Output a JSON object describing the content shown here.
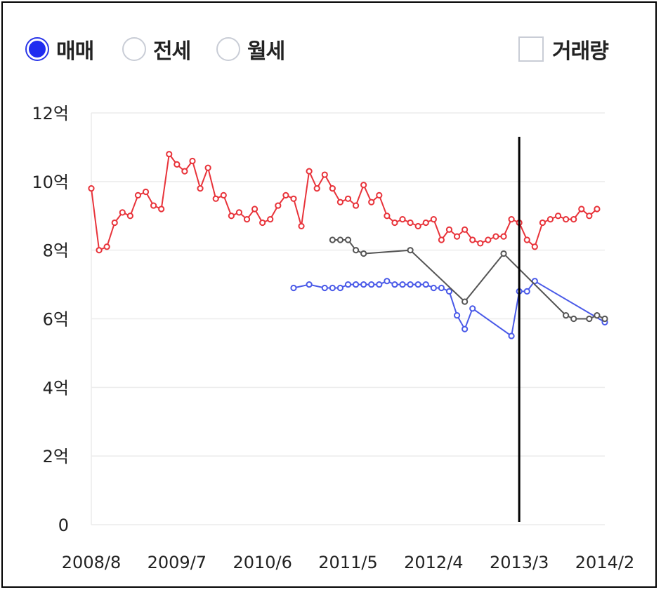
{
  "controls": {
    "radios": [
      {
        "label": "매매",
        "selected": true
      },
      {
        "label": "전세",
        "selected": false
      },
      {
        "label": "월세",
        "selected": false
      }
    ],
    "volume_label": "거래량",
    "volume_checked": false,
    "accent_color": "#1f2cf0"
  },
  "chart_data": {
    "type": "line",
    "ylim": [
      0,
      12
    ],
    "y_ticks": [
      {
        "value": 0,
        "label": "0"
      },
      {
        "value": 2,
        "label": "2억"
      },
      {
        "value": 4,
        "label": "4억"
      },
      {
        "value": 6,
        "label": "6억"
      },
      {
        "value": 8,
        "label": "8억"
      },
      {
        "value": 10,
        "label": "10억"
      },
      {
        "value": 12,
        "label": "12억"
      }
    ],
    "x_ticks": [
      "2008/8",
      "2009/7",
      "2010/6",
      "2011/5",
      "2012/4",
      "2013/3",
      "2014/2"
    ],
    "x_range": [
      "2008/8",
      "2014/2"
    ],
    "grid": true,
    "marker_line_date": "2013/3",
    "series": [
      {
        "color": "#e8333a",
        "points": [
          [
            "2008/8",
            9.8
          ],
          [
            "2008/9",
            8.0
          ],
          [
            "2008/10",
            8.1
          ],
          [
            "2008/11",
            8.8
          ],
          [
            "2008/12",
            9.1
          ],
          [
            "2009/1",
            9.0
          ],
          [
            "2009/2",
            9.6
          ],
          [
            "2009/3",
            9.7
          ],
          [
            "2009/4",
            9.3
          ],
          [
            "2009/5",
            9.2
          ],
          [
            "2009/6",
            10.8
          ],
          [
            "2009/7",
            10.5
          ],
          [
            "2009/8",
            10.3
          ],
          [
            "2009/9",
            10.6
          ],
          [
            "2009/10",
            9.8
          ],
          [
            "2009/11",
            10.4
          ],
          [
            "2009/12",
            9.5
          ],
          [
            "2010/1",
            9.6
          ],
          [
            "2010/2",
            9.0
          ],
          [
            "2010/3",
            9.1
          ],
          [
            "2010/4",
            8.9
          ],
          [
            "2010/5",
            9.2
          ],
          [
            "2010/6",
            8.8
          ],
          [
            "2010/7",
            8.9
          ],
          [
            "2010/8",
            9.3
          ],
          [
            "2010/9",
            9.6
          ],
          [
            "2010/10",
            9.5
          ],
          [
            "2010/11",
            8.7
          ],
          [
            "2010/12",
            10.3
          ],
          [
            "2011/1",
            9.8
          ],
          [
            "2011/2",
            10.2
          ],
          [
            "2011/3",
            9.8
          ],
          [
            "2011/4",
            9.4
          ],
          [
            "2011/5",
            9.5
          ],
          [
            "2011/6",
            9.3
          ],
          [
            "2011/7",
            9.9
          ],
          [
            "2011/8",
            9.4
          ],
          [
            "2011/9",
            9.6
          ],
          [
            "2011/10",
            9.0
          ],
          [
            "2011/11",
            8.8
          ],
          [
            "2011/12",
            8.9
          ],
          [
            "2012/1",
            8.8
          ],
          [
            "2012/2",
            8.7
          ],
          [
            "2012/3",
            8.8
          ],
          [
            "2012/4",
            8.9
          ],
          [
            "2012/5",
            8.3
          ],
          [
            "2012/6",
            8.6
          ],
          [
            "2012/7",
            8.4
          ],
          [
            "2012/8",
            8.6
          ],
          [
            "2012/9",
            8.3
          ],
          [
            "2012/10",
            8.2
          ],
          [
            "2012/11",
            8.3
          ],
          [
            "2012/12",
            8.4
          ],
          [
            "2013/1",
            8.4
          ],
          [
            "2013/2",
            8.9
          ],
          [
            "2013/3",
            8.8
          ],
          [
            "2013/4",
            8.3
          ],
          [
            "2013/5",
            8.1
          ],
          [
            "2013/6",
            8.8
          ],
          [
            "2013/7",
            8.9
          ],
          [
            "2013/8",
            9.0
          ],
          [
            "2013/9",
            8.9
          ],
          [
            "2013/10",
            8.9
          ],
          [
            "2013/11",
            9.2
          ],
          [
            "2013/12",
            9.0
          ],
          [
            "2014/1",
            9.2
          ]
        ]
      },
      {
        "color": "#4a5ae8",
        "points": [
          [
            "2010/10",
            6.9
          ],
          [
            "2010/12",
            7.0
          ],
          [
            "2011/2",
            6.9
          ],
          [
            "2011/3",
            6.9
          ],
          [
            "2011/4",
            6.9
          ],
          [
            "2011/5",
            7.0
          ],
          [
            "2011/6",
            7.0
          ],
          [
            "2011/7",
            7.0
          ],
          [
            "2011/8",
            7.0
          ],
          [
            "2011/9",
            7.0
          ],
          [
            "2011/10",
            7.1
          ],
          [
            "2011/11",
            7.0
          ],
          [
            "2011/12",
            7.0
          ],
          [
            "2012/1",
            7.0
          ],
          [
            "2012/2",
            7.0
          ],
          [
            "2012/3",
            7.0
          ],
          [
            "2012/4",
            6.9
          ],
          [
            "2012/5",
            6.9
          ],
          [
            "2012/6",
            6.8
          ],
          [
            "2012/7",
            6.1
          ],
          [
            "2012/8",
            5.7
          ],
          [
            "2012/9",
            6.3
          ],
          [
            "2013/2",
            5.5
          ],
          [
            "2013/3",
            6.8
          ],
          [
            "2013/4",
            6.8
          ],
          [
            "2013/5",
            7.1
          ],
          [
            "2014/2",
            5.9
          ]
        ]
      },
      {
        "color": "#555555",
        "points": [
          [
            "2011/3",
            8.3
          ],
          [
            "2011/4",
            8.3
          ],
          [
            "2011/5",
            8.3
          ],
          [
            "2011/6",
            8.0
          ],
          [
            "2011/7",
            7.9
          ],
          [
            "2012/1",
            8.0
          ],
          [
            "2012/8",
            6.5
          ],
          [
            "2013/1",
            7.9
          ],
          [
            "2013/9",
            6.1
          ],
          [
            "2013/10",
            6.0
          ],
          [
            "2013/12",
            6.0
          ],
          [
            "2014/1",
            6.1
          ],
          [
            "2014/2",
            6.0
          ]
        ]
      }
    ]
  }
}
